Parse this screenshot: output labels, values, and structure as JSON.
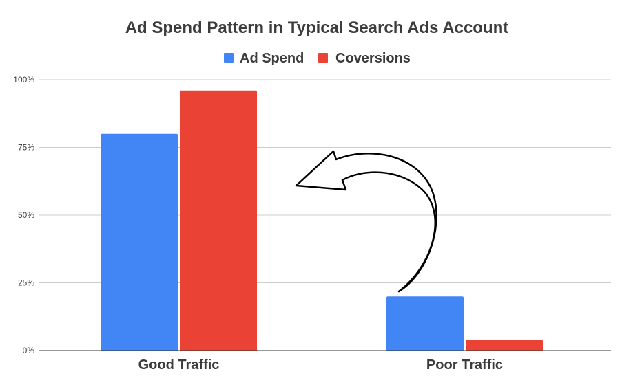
{
  "chart_data": {
    "type": "bar",
    "title": "Ad Spend Pattern in Typical Search Ads Account",
    "categories": [
      "Good Traffic",
      "Poor Traffic"
    ],
    "series": [
      {
        "name": "Ad Spend",
        "values": [
          80,
          20
        ],
        "color": "#4285f4"
      },
      {
        "name": "Coversions",
        "values": [
          96,
          4
        ],
        "color": "#ea4335"
      }
    ],
    "ylim": [
      0,
      100
    ],
    "yticks": [
      {
        "value": 0,
        "label": "0%"
      },
      {
        "value": 25,
        "label": "25%"
      },
      {
        "value": 50,
        "label": "50%"
      },
      {
        "value": 75,
        "label": "75%"
      },
      {
        "value": 100,
        "label": "100%"
      }
    ],
    "xlabel": "",
    "ylabel": "",
    "grid": true,
    "legend_position": "top",
    "annotation": {
      "type": "curved-arrow",
      "from": "Poor Traffic",
      "to": "Good Traffic"
    }
  }
}
